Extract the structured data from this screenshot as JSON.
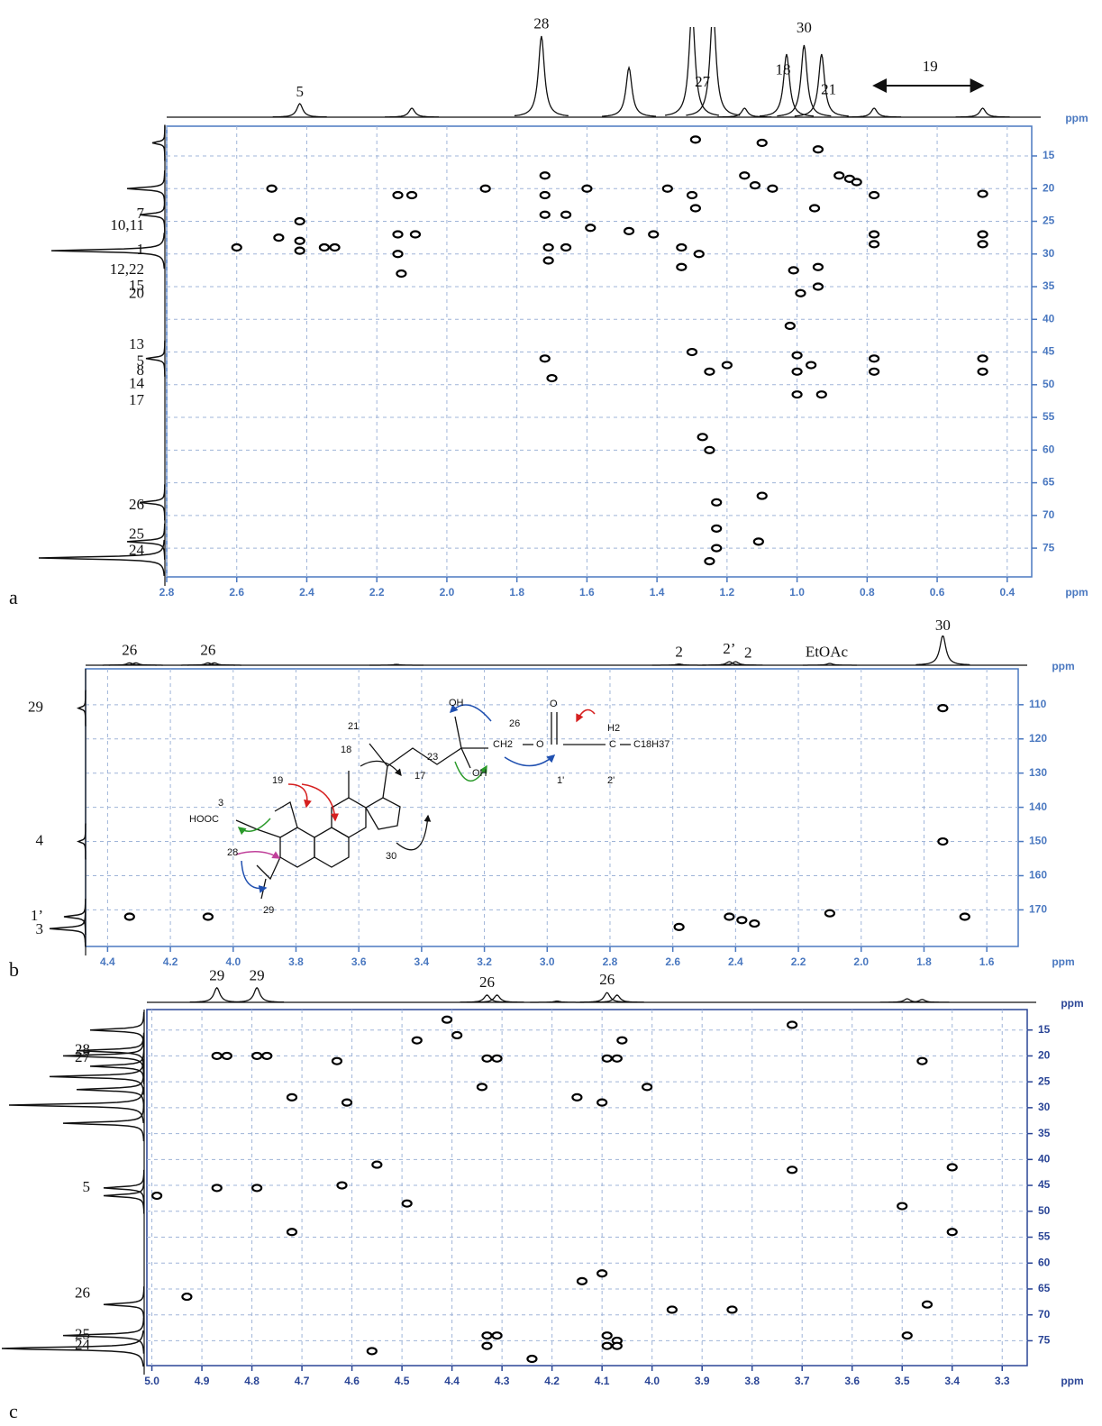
{
  "chart_data": [
    {
      "type": "scatter",
      "panel": "a",
      "xlabel": "ppm",
      "top_label": "ppm",
      "axis_color": "#4a78c0",
      "color": "#000000",
      "grid": true,
      "xlim": [
        2.8,
        0.33
      ],
      "ylim": [
        10.45,
        79.4
      ],
      "xticks": [
        2.8,
        2.6,
        2.4,
        2.2,
        {
          "value": 2,
          "label": "2.0"
        },
        1.8,
        1.6,
        1.4,
        1.2,
        {
          "value": 1,
          "label": "1.0"
        },
        0.8,
        0.6,
        0.4
      ],
      "yticks": [
        15,
        20,
        25,
        30,
        35,
        40,
        45,
        50,
        55,
        60,
        65,
        70,
        75
      ],
      "points": {
        "x": [
          2.42,
          2.42,
          2.42,
          2.48,
          2.6,
          2.35,
          2.32,
          2.5,
          2.14,
          2.1,
          2.14,
          2.09,
          2.14,
          2.13,
          1.89,
          1.72,
          1.72,
          1.72,
          1.71,
          1.66,
          1.71,
          1.66,
          1.6,
          1.59,
          1.48,
          1.41,
          1.37,
          1.3,
          1.29,
          1.33,
          1.28,
          1.33,
          1.29,
          1.1,
          1.15,
          1.12,
          1.07,
          0.95,
          0.88,
          0.85,
          0.83,
          0.78,
          0.78,
          0.78,
          0.47,
          0.47,
          0.47,
          0.78,
          0.78,
          0.47,
          0.47,
          0.94,
          1.01,
          0.94,
          0.99,
          0.94,
          1.0,
          1.0,
          0.96,
          1.0,
          0.93,
          1.72,
          1.7,
          1.3,
          1.25,
          1.2,
          1.27,
          1.25,
          1.23,
          1.23,
          1.23,
          1.25,
          1.1,
          1.11,
          1.02
        ],
        "y": [
          25,
          28,
          29.5,
          27.5,
          29,
          29,
          29,
          20,
          21,
          21,
          27,
          27,
          30,
          33,
          20,
          18,
          21,
          24,
          29,
          29,
          31,
          24,
          20,
          26,
          26.5,
          27,
          20,
          21,
          23,
          29,
          30,
          32,
          12.5,
          13,
          18,
          19.5,
          20,
          23,
          18,
          18.5,
          19,
          21,
          27,
          28.5,
          20.8,
          27,
          28.5,
          46,
          48,
          46,
          48,
          14,
          32.5,
          32,
          36,
          35,
          45.5,
          48,
          47,
          51.5,
          51.5,
          46,
          49,
          45,
          48,
          47,
          58,
          60,
          68,
          72,
          75,
          77,
          67,
          74,
          41
        ]
      },
      "top_peaks": {
        "x": [
          2.42,
          2.1,
          1.73,
          1.48,
          1.3,
          1.24,
          1.15,
          1.03,
          0.98,
          0.93,
          0.78,
          0.47
        ],
        "h": [
          0.15,
          0.1,
          0.9,
          0.55,
          1.2,
          1.2,
          0.1,
          0.7,
          0.8,
          0.7,
          0.1,
          0.1
        ]
      },
      "left_peaks": {
        "y": [
          13,
          20,
          24,
          29.5,
          46,
          68,
          74,
          76.5
        ],
        "h": [
          0.1,
          0.3,
          0.2,
          0.9,
          0.15,
          0.2,
          0.3,
          1.0
        ]
      },
      "top_labels": [
        {
          "text": "5",
          "x": 2.42
        },
        {
          "text": "28",
          "x": 1.73
        },
        {
          "text": "27",
          "x": 1.27
        },
        {
          "text": "18",
          "x": 1.04
        },
        {
          "text": "30",
          "x": 0.98
        },
        {
          "text": "21",
          "x": 0.91
        },
        {
          "text": "19",
          "x": 0.62,
          "span": [
            0.78,
            0.47
          ]
        }
      ],
      "left_labels": [
        {
          "text": "7",
          "y": 24
        },
        {
          "text": "10,11",
          "y": 25.8
        },
        {
          "text": "1",
          "y": 29.5
        },
        {
          "text": "12,22",
          "y": 32.5
        },
        {
          "text": "15",
          "y": 35
        },
        {
          "text": "20",
          "y": 36.2
        },
        {
          "text": "13",
          "y": 44
        },
        {
          "text": "5",
          "y": 46.5
        },
        {
          "text": "8",
          "y": 48
        },
        {
          "text": "14",
          "y": 50
        },
        {
          "text": "17",
          "y": 52.5
        },
        {
          "text": "26",
          "y": 68.5
        },
        {
          "text": "25",
          "y": 73
        },
        {
          "text": "24",
          "y": 75.5
        }
      ]
    },
    {
      "type": "scatter",
      "panel": "b",
      "xlabel": "ppm",
      "top_label": "ppm",
      "axis_color": "#4a78c0",
      "color": "#000000",
      "grid": true,
      "xlim": [
        4.47,
        1.5
      ],
      "ylim": [
        99.5,
        180.7
      ],
      "xticks": [
        4.4,
        4.2,
        {
          "value": 4,
          "label": "4.0"
        },
        3.8,
        3.6,
        3.4,
        3.2,
        {
          "value": 3,
          "label": "3.0"
        },
        2.8,
        2.6,
        2.4,
        2.2,
        {
          "value": 2,
          "label": "2.0"
        },
        1.8,
        1.6
      ],
      "yticks": [
        110,
        120,
        130,
        140,
        150,
        160,
        170
      ],
      "points": {
        "x": [
          1.74,
          1.74,
          4.33,
          4.08,
          2.42,
          2.38,
          2.58,
          2.1,
          1.67,
          2.34
        ],
        "y": [
          111,
          150,
          172,
          172,
          172,
          173,
          175,
          171,
          172,
          174
        ]
      },
      "top_peaks": {
        "x": [
          4.33,
          4.31,
          4.08,
          4.06,
          3.48,
          2.58,
          2.42,
          2.4,
          2.1,
          1.74
        ],
        "h": [
          0.08,
          0.08,
          0.08,
          0.08,
          0.03,
          0.04,
          0.12,
          0.12,
          0.06,
          1.0
        ]
      },
      "left_peaks": {
        "y": [
          111,
          150,
          172,
          175.5
        ],
        "h": [
          0.2,
          0.2,
          0.6,
          1.0
        ]
      },
      "top_labels": [
        {
          "text": "26",
          "x": 4.33
        },
        {
          "text": "26",
          "x": 4.08
        },
        {
          "text": "2",
          "x": 2.58
        },
        {
          "text": "2’",
          "x": 2.42
        },
        {
          "text": "2",
          "x": 2.36
        },
        {
          "text": "EtOAc",
          "x": 2.11
        },
        {
          "text": "30",
          "x": 1.74
        }
      ],
      "left_labels": [
        {
          "text": "29",
          "y": 111
        },
        {
          "text": "4",
          "y": 150
        },
        {
          "text": "1’",
          "y": 172
        },
        {
          "text": "3",
          "y": 176
        }
      ],
      "structure_labels": [
        "OH",
        "26",
        "CH2",
        "O",
        "O",
        "H2",
        "C",
        "C18H37",
        "1'",
        "2'",
        "OH",
        "21",
        "18",
        "23",
        "17",
        "19",
        "3",
        "HOOC",
        "28",
        "29",
        "30"
      ]
    },
    {
      "type": "scatter",
      "panel": "c",
      "xlabel": "ppm",
      "top_label": "ppm",
      "axis_color": "#2a4596",
      "color": "#000000",
      "grid": true,
      "xlim": [
        5.01,
        3.25
      ],
      "ylim": [
        11.05,
        79.8
      ],
      "xticks": [
        {
          "value": 5,
          "label": "5.0"
        },
        4.9,
        4.8,
        4.7,
        4.6,
        4.5,
        4.4,
        4.3,
        4.2,
        4.1,
        {
          "value": 4,
          "label": "4.0"
        },
        3.9,
        3.8,
        3.7,
        3.6,
        3.5,
        3.4,
        3.3
      ],
      "yticks": [
        15,
        20,
        25,
        30,
        35,
        40,
        45,
        50,
        55,
        60,
        65,
        70,
        75
      ],
      "points": {
        "x": [
          4.87,
          4.85,
          4.79,
          4.77,
          4.33,
          4.31,
          4.09,
          4.07,
          4.87,
          4.79,
          4.33,
          4.31,
          4.33,
          4.09,
          4.07,
          4.07,
          4.09,
          4.41,
          4.39,
          4.47,
          4.06,
          4.63,
          3.46,
          3.72,
          4.72,
          4.61,
          4.1,
          4.34,
          4.15,
          4.01,
          4.55,
          3.72,
          3.4,
          4.99,
          4.49,
          3.5,
          4.62,
          3.4,
          4.72,
          4.1,
          4.14,
          4.93,
          3.45,
          3.84,
          3.96,
          3.49,
          4.56,
          4.24
        ],
        "y": [
          20,
          20,
          20,
          20,
          20.5,
          20.5,
          20.5,
          20.5,
          45.5,
          45.5,
          74,
          74,
          76,
          74,
          75,
          76,
          76,
          13,
          16,
          17,
          17,
          21,
          21,
          14,
          28,
          29,
          29,
          26,
          28,
          26,
          41,
          42,
          41.5,
          47,
          48.5,
          49,
          45,
          54,
          54,
          62,
          63.5,
          66.5,
          68,
          69,
          69,
          74,
          77,
          78.5
        ]
      },
      "top_peaks": {
        "x": [
          4.87,
          4.79,
          4.33,
          4.31,
          4.09,
          4.07,
          4.19,
          3.49,
          3.46
        ],
        "h": [
          0.6,
          0.6,
          0.3,
          0.3,
          0.4,
          0.3,
          0.05,
          0.15,
          0.12
        ]
      },
      "left_peaks": {
        "y": [
          15,
          19,
          20,
          22,
          24,
          26.5,
          29.5,
          33,
          45.5,
          47,
          68,
          74,
          76.5
        ],
        "h": [
          0.4,
          0.5,
          0.6,
          0.4,
          0.7,
          0.5,
          1.0,
          0.6,
          0.3,
          0.3,
          0.3,
          0.6,
          1.2
        ]
      },
      "top_labels": [
        {
          "text": "29",
          "x": 4.87
        },
        {
          "text": "29",
          "x": 4.79
        },
        {
          "text": "26",
          "x": 4.33
        },
        {
          "text": "26",
          "x": 4.09
        }
      ],
      "left_labels": [
        {
          "text": "28",
          "y": 19
        },
        {
          "text": "27",
          "y": 20.5
        },
        {
          "text": "5",
          "y": 45.5
        },
        {
          "text": "26",
          "y": 66
        },
        {
          "text": "25",
          "y": 74
        },
        {
          "text": "24",
          "y": 76
        }
      ]
    }
  ]
}
